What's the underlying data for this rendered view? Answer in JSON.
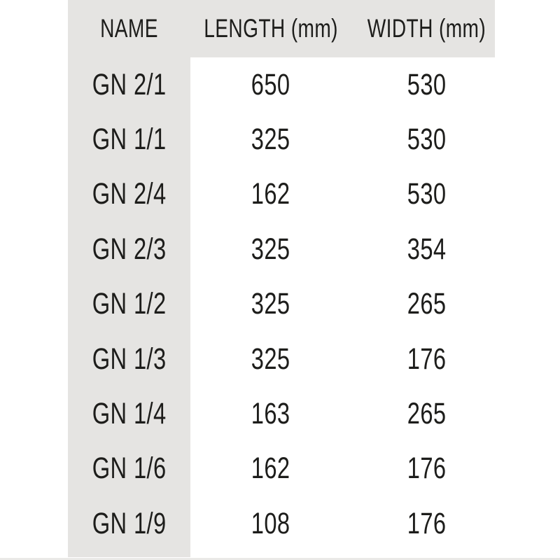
{
  "table": {
    "headers": [
      "NAME",
      "LENGTH (mm)",
      "WIDTH (mm)"
    ],
    "rows": [
      {
        "name": "GN 2/1",
        "length": "650",
        "width": "530"
      },
      {
        "name": "GN 1/1",
        "length": "325",
        "width": "530"
      },
      {
        "name": "GN 2/4",
        "length": "162",
        "width": "530"
      },
      {
        "name": "GN 2/3",
        "length": "325",
        "width": "354"
      },
      {
        "name": "GN 1/2",
        "length": "325",
        "width": "265"
      },
      {
        "name": "GN 1/3",
        "length": "325",
        "width": "176"
      },
      {
        "name": "GN 1/4",
        "length": "163",
        "width": "265"
      },
      {
        "name": "GN 1/6",
        "length": "162",
        "width": "176"
      },
      {
        "name": "GN 1/9",
        "length": "108",
        "width": "176"
      }
    ]
  },
  "colors": {
    "band": "#e5e4e2",
    "text": "#1d1d1b",
    "page": "#ffffff",
    "bottom_edge": "#eae9e7"
  }
}
